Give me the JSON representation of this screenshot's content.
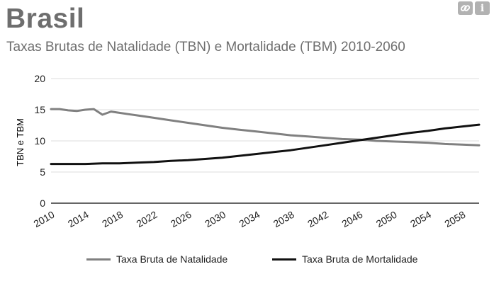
{
  "header": {
    "title": "Brasil",
    "subtitle": "Taxas Brutas de Natalidade (TBN) e Mortalidade (TBM) 2010-2060",
    "link_icon": "link-icon",
    "info_icon": "info-icon",
    "info_glyph": "i"
  },
  "chart_data": {
    "type": "line",
    "ylabel": "TBN e TBM",
    "xlabel": "",
    "ylim": [
      0,
      20
    ],
    "yticks": [
      0,
      5,
      10,
      15,
      20
    ],
    "xlim": [
      2010,
      2060
    ],
    "xticks": [
      "2010",
      "2014",
      "2018",
      "2022",
      "2026",
      "2030",
      "2034",
      "2038",
      "2042",
      "2046",
      "2050",
      "2054",
      "2058"
    ],
    "grid": "horizontal",
    "legend_position": "bottom",
    "series": [
      {
        "name": "Taxa Bruta de Natalidade",
        "color": "#808080",
        "x": [
          2010,
          2011,
          2012,
          2013,
          2014,
          2015,
          2016,
          2017,
          2018,
          2019,
          2020,
          2022,
          2024,
          2026,
          2028,
          2030,
          2032,
          2034,
          2036,
          2038,
          2040,
          2042,
          2044,
          2046,
          2048,
          2050,
          2052,
          2054,
          2056,
          2058,
          2060
        ],
        "y": [
          15.1,
          15.1,
          14.9,
          14.8,
          15.0,
          15.1,
          14.2,
          14.7,
          14.5,
          14.3,
          14.1,
          13.7,
          13.3,
          12.9,
          12.5,
          12.1,
          11.8,
          11.5,
          11.2,
          10.9,
          10.7,
          10.5,
          10.3,
          10.2,
          10.0,
          9.9,
          9.8,
          9.7,
          9.5,
          9.4,
          9.3
        ]
      },
      {
        "name": "Taxa Bruta de Mortalidade",
        "color": "#111111",
        "x": [
          2010,
          2012,
          2014,
          2016,
          2018,
          2020,
          2022,
          2024,
          2026,
          2028,
          2030,
          2032,
          2034,
          2036,
          2038,
          2040,
          2042,
          2044,
          2046,
          2048,
          2050,
          2052,
          2054,
          2056,
          2058,
          2060
        ],
        "y": [
          6.3,
          6.3,
          6.3,
          6.4,
          6.4,
          6.5,
          6.6,
          6.8,
          6.9,
          7.1,
          7.3,
          7.6,
          7.9,
          8.2,
          8.5,
          8.9,
          9.3,
          9.7,
          10.1,
          10.5,
          10.9,
          11.3,
          11.6,
          12.0,
          12.3,
          12.6
        ]
      }
    ]
  }
}
